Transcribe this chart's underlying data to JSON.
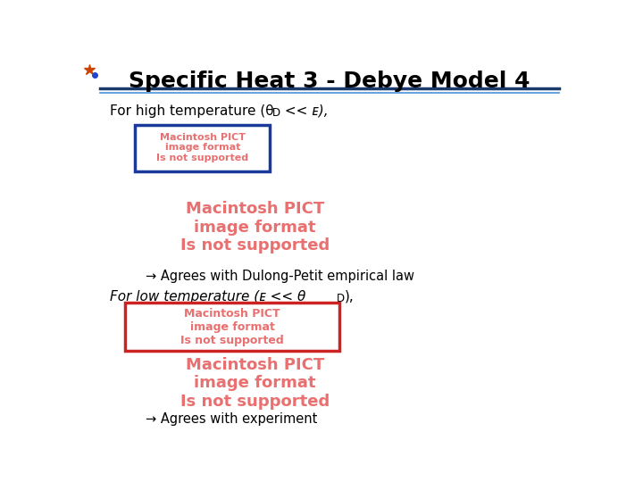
{
  "title": "Specific Heat 3 - Debye Model 4",
  "title_fontsize": 18,
  "title_color": "#000000",
  "bg_color": "#ffffff",
  "header_line_color1": "#1a3a6b",
  "header_line_color2": "#4a90d9",
  "pict_text": "Macintosh PICT\nimage format\nIs not supported",
  "pict_color": "#e87070",
  "pict_box_color_high": "#1a3a9b",
  "pict_box_color_low": "#cc2222",
  "arrow1": "→ Agrees with Dulong-Petit empirical law",
  "arrow2": "→ Agrees with experiment"
}
